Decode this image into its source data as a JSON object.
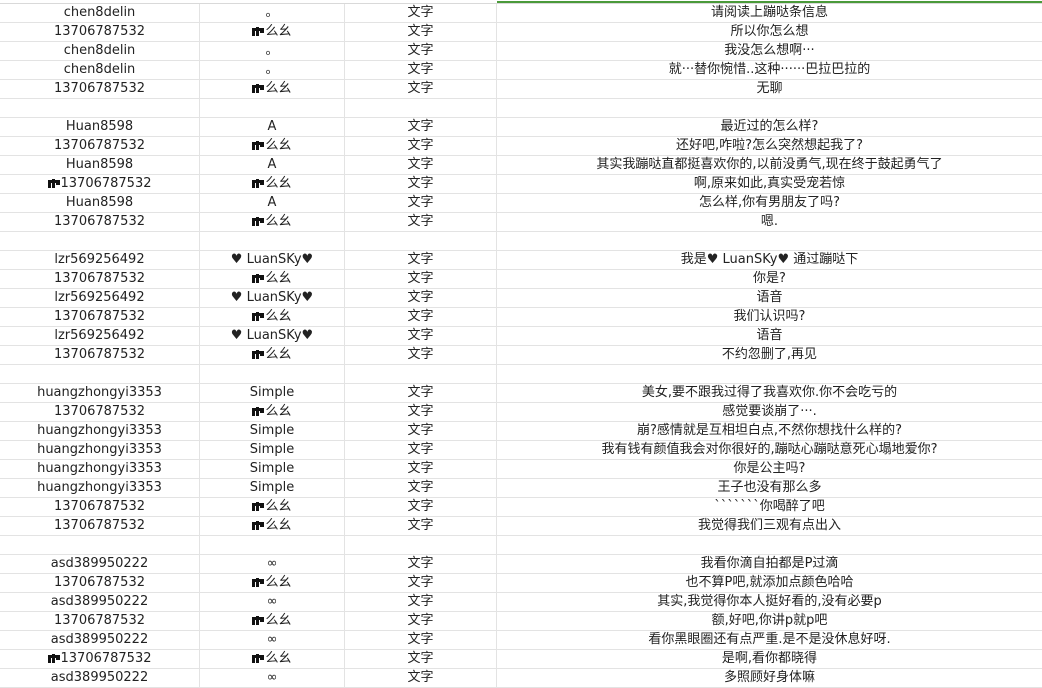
{
  "colors": {
    "accent": "#4a9a3a",
    "grid": "#e3e3e3"
  },
  "rows": [
    {
      "user": "chen8delin",
      "nick": "。",
      "type": "文字",
      "msg": "请阅读上蹦哒条信息"
    },
    {
      "user": "13706787532",
      "nick": "么幺",
      "nick_icon": "glyph-icon",
      "type": "文字",
      "msg": "所以你怎么想"
    },
    {
      "user": "chen8delin",
      "nick": "。",
      "type": "文字",
      "msg": "我没怎么想啊···"
    },
    {
      "user": "chen8delin",
      "nick": "。",
      "type": "文字",
      "msg": "就···替你惋惜..这种······巴拉巴拉的"
    },
    {
      "user": "13706787532",
      "nick": "么幺",
      "nick_icon": "glyph-icon",
      "type": "文字",
      "msg": "无聊"
    },
    {},
    {
      "user": "Huan8598",
      "nick": "A",
      "type": "文字",
      "msg": "最近过的怎么样?"
    },
    {
      "user": "13706787532",
      "nick": "么幺",
      "nick_icon": "glyph-icon",
      "type": "文字",
      "msg": "还好吧,咋啦?怎么突然想起我了?"
    },
    {
      "user": "Huan8598",
      "nick": "A",
      "type": "文字",
      "msg": "其实我蹦哒直都挺喜欢你的,以前没勇气,现在终于鼓起勇气了"
    },
    {
      "user": "13706787532",
      "user_icon": "glyph-icon",
      "nick": "么幺",
      "nick_icon": "glyph-icon",
      "type": "文字",
      "msg": "啊,原来如此,真实受宠若惊"
    },
    {
      "user": "Huan8598",
      "nick": "A",
      "type": "文字",
      "msg": "怎么样,你有男朋友了吗?"
    },
    {
      "user": "13706787532",
      "nick": "么幺",
      "nick_icon": "glyph-icon",
      "type": "文字",
      "msg": "嗯."
    },
    {},
    {
      "user": "lzr569256492",
      "nick": "♥ LuanSKy♥",
      "type": "文字",
      "msg": "我是♥ LuanSKy♥ 通过蹦哒下"
    },
    {
      "user": "13706787532",
      "nick": "么幺",
      "nick_icon": "glyph-icon",
      "type": "文字",
      "msg": "你是?"
    },
    {
      "user": "lzr569256492",
      "nick": "♥ LuanSKy♥",
      "type": "文字",
      "msg": "语音"
    },
    {
      "user": "13706787532",
      "nick": "么幺",
      "nick_icon": "glyph-icon",
      "type": "文字",
      "msg": "我们认识吗?"
    },
    {
      "user": "lzr569256492",
      "nick": "♥ LuanSKy♥",
      "type": "文字",
      "msg": "语音"
    },
    {
      "user": "13706787532",
      "nick": "么幺",
      "nick_icon": "glyph-icon",
      "type": "文字",
      "msg": "不约忽删了,再见"
    },
    {},
    {
      "user": "huangzhongyi3353",
      "nick": "Simple",
      "type": "文字",
      "msg": "美女,要不跟我过得了我喜欢你.你不会吃亏的"
    },
    {
      "user": "13706787532",
      "nick": "么幺",
      "nick_icon": "glyph-icon",
      "type": "文字",
      "msg": "感觉要谈崩了···."
    },
    {
      "user": "huangzhongyi3353",
      "nick": "Simple",
      "type": "文字",
      "msg": "崩?感情就是互相坦白点,不然你想找什么样的?"
    },
    {
      "user": "huangzhongyi3353",
      "nick": "Simple",
      "type": "文字",
      "msg": "我有钱有颜值我会对你很好的,蹦哒心蹦哒意死心塌地爱你?"
    },
    {
      "user": "huangzhongyi3353",
      "nick": "Simple",
      "type": "文字",
      "msg": "你是公主吗?"
    },
    {
      "user": "huangzhongyi3353",
      "nick": "Simple",
      "type": "文字",
      "msg": "王子也没有那么多"
    },
    {
      "user": "13706787532",
      "nick": "么幺",
      "nick_icon": "glyph-icon",
      "type": "文字",
      "msg": "```````你喝醉了吧"
    },
    {
      "user": "13706787532",
      "nick": "么幺",
      "nick_icon": "glyph-icon",
      "type": "文字",
      "msg": "我觉得我们三观有点出入"
    },
    {},
    {
      "user": "asd389950222",
      "nick": "∞",
      "type": "文字",
      "msg": "我看你滴自拍都是P过滴"
    },
    {
      "user": "13706787532",
      "nick": "么幺",
      "nick_icon": "glyph-icon",
      "type": "文字",
      "msg": "也不算P吧,就添加点颜色哈哈"
    },
    {
      "user": "asd389950222",
      "nick": "∞",
      "type": "文字",
      "msg": "其实,我觉得你本人挺好看的,没有必要p"
    },
    {
      "user": "13706787532",
      "nick": "么幺",
      "nick_icon": "glyph-icon",
      "type": "文字",
      "msg": "额,好吧,你讲p就p吧"
    },
    {
      "user": "asd389950222",
      "nick": "∞",
      "type": "文字",
      "msg": "看你黑眼圈还有点严重.是不是没休息好呀."
    },
    {
      "user": "13706787532",
      "user_icon": "glyph-icon",
      "nick": "么幺",
      "nick_icon": "glyph-icon",
      "type": "文字",
      "msg": "是啊,看你都晓得"
    },
    {
      "user": "asd389950222",
      "nick": "∞",
      "type": "文字",
      "msg": "多照顾好身体嘛"
    }
  ]
}
